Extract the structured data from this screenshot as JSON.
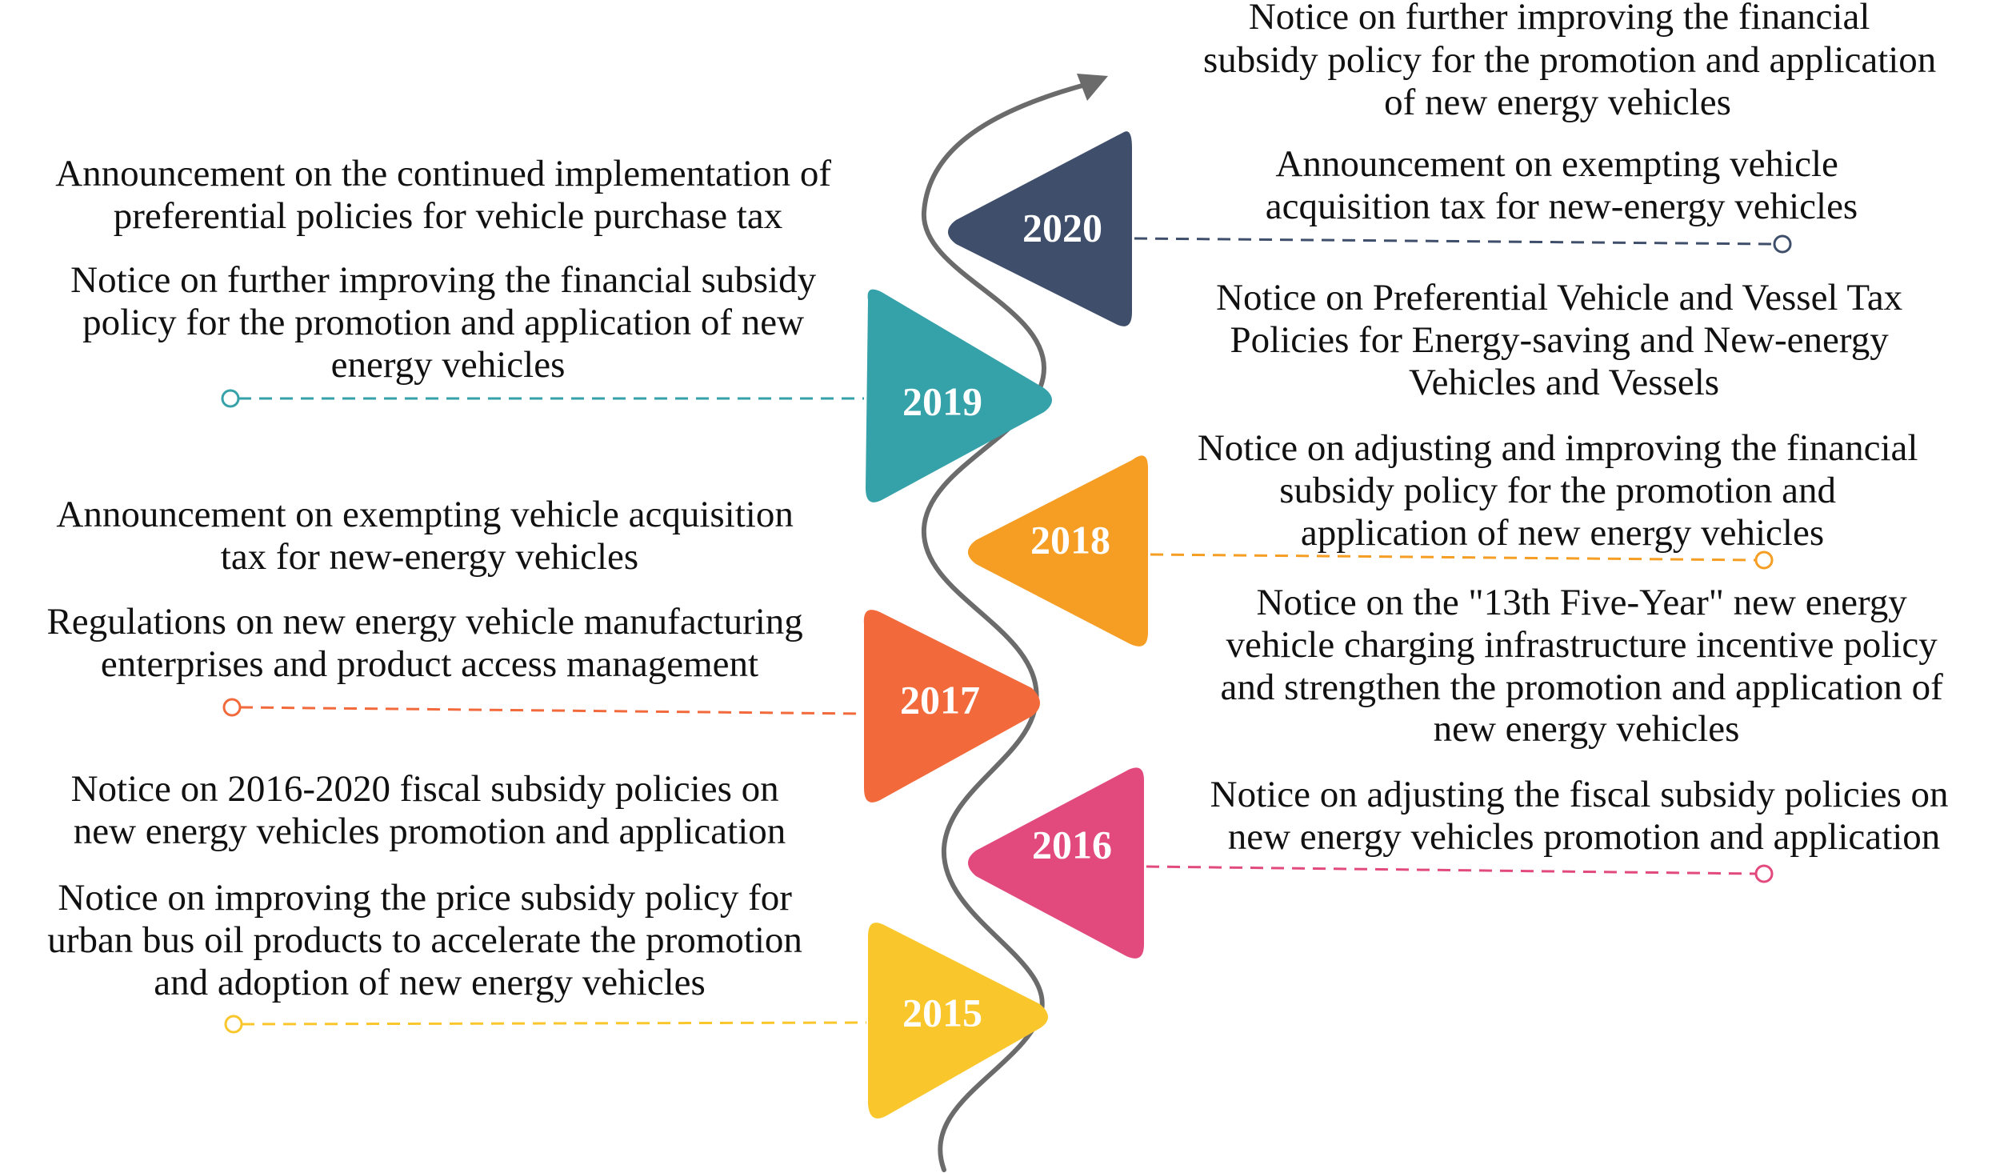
{
  "colors": {
    "background": "#ffffff",
    "road": "#6b6b6b",
    "text": "#111111",
    "year_text": "#ffffff"
  },
  "years": [
    {
      "label": "2020",
      "color": "#3f4f6b",
      "marker_icon": "triangle-left-icon"
    },
    {
      "label": "2019",
      "color": "#35a1a8",
      "marker_icon": "triangle-right-icon"
    },
    {
      "label": "2018",
      "color": "#f59e23",
      "marker_icon": "triangle-left-icon"
    },
    {
      "label": "2017",
      "color": "#f26a3b",
      "marker_icon": "triangle-right-icon"
    },
    {
      "label": "2016",
      "color": "#e24a7d",
      "marker_icon": "triangle-left-icon"
    },
    {
      "label": "2015",
      "color": "#f9c72c",
      "marker_icon": "triangle-right-icon"
    }
  ],
  "notes": {
    "right_top": [
      "Notice on further improving the financial",
      "subsidy policy for the promotion and application",
      "of new energy vehicles"
    ],
    "right_2020": [
      "Announcement on exempting vehicle",
      "acquisition tax for new-energy vehicles"
    ],
    "right_2019": [
      "Notice on Preferential Vehicle and Vessel Tax",
      "Policies for Energy-saving and New-energy",
      "Vehicles and Vessels"
    ],
    "right_2018": [
      "Notice on adjusting and improving the financial",
      "subsidy policy for the promotion and",
      "application of new energy vehicles"
    ],
    "right_2017": [
      "Notice on the \"13th Five-Year\" new energy",
      "vehicle charging infrastructure incentive policy",
      "and strengthen the promotion and application of",
      "new energy vehicles"
    ],
    "right_2016": [
      "Notice on adjusting the fiscal subsidy policies on",
      "new energy vehicles promotion and application"
    ],
    "left_2020": [
      "Announcement on the continued implementation of",
      "preferential policies for vehicle purchase tax"
    ],
    "left_2019": [
      "Notice on further improving the financial subsidy",
      "policy for the promotion and application of new",
      "energy vehicles"
    ],
    "left_2018": [
      "Announcement on exempting vehicle acquisition",
      "tax for new-energy vehicles"
    ],
    "left_2017": [
      "Regulations on new energy vehicle manufacturing",
      "enterprises and product access management"
    ],
    "left_2016": [
      "Notice on 2016-2020 fiscal subsidy policies on",
      "new energy vehicles promotion and application"
    ],
    "left_2015": [
      "Notice on improving the price subsidy policy for",
      "urban bus oil products to accelerate the promotion",
      "and adoption of new energy vehicles"
    ]
  }
}
